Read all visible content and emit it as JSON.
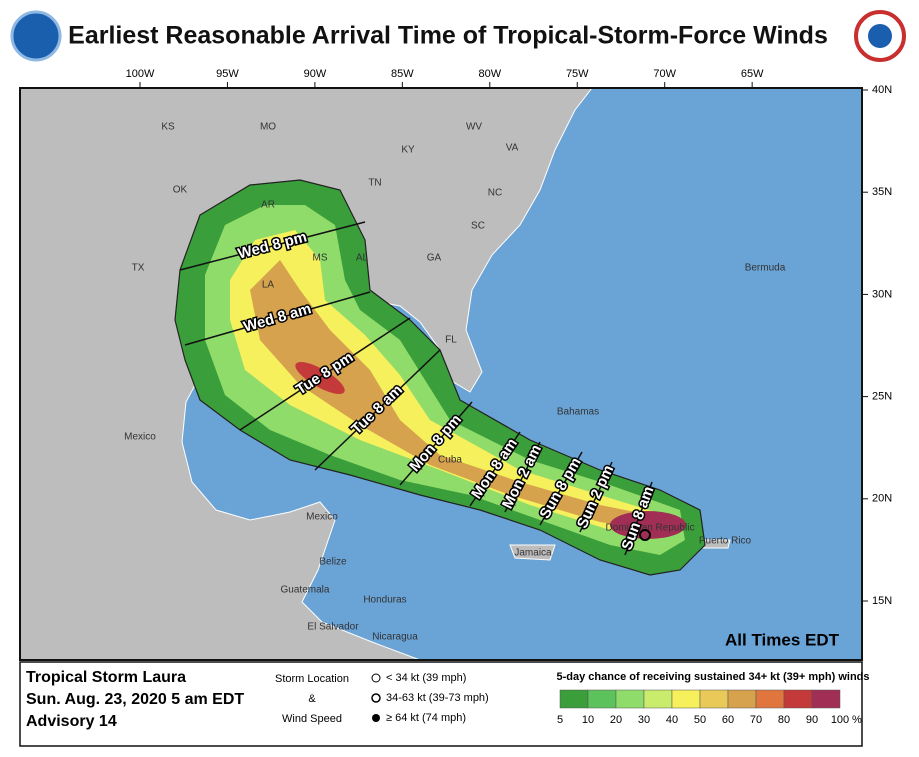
{
  "header": {
    "title": "Earliest Reasonable Arrival Time of Tropical-Storm-Force Winds"
  },
  "map": {
    "lon_ticks": [
      {
        "value": -100,
        "label": "100W"
      },
      {
        "value": -95,
        "label": "95W"
      },
      {
        "value": -90,
        "label": "90W"
      },
      {
        "value": -85,
        "label": "85W"
      },
      {
        "value": -80,
        "label": "80W"
      },
      {
        "value": -75,
        "label": "75W"
      },
      {
        "value": -70,
        "label": "70W"
      },
      {
        "value": -65,
        "label": "65W"
      }
    ],
    "lat_ticks": [
      {
        "value": 40,
        "label": "40N"
      },
      {
        "value": 35,
        "label": "35N"
      },
      {
        "value": 30,
        "label": "30N"
      },
      {
        "value": 25,
        "label": "25N"
      },
      {
        "value": 20,
        "label": "20N"
      },
      {
        "value": 15,
        "label": "15N"
      }
    ],
    "place_labels": [
      "KS",
      "MO",
      "WV",
      "VA",
      "KY",
      "OK",
      "AR",
      "TN",
      "NC",
      "SC",
      "TX",
      "MS",
      "AL",
      "GA",
      "LA",
      "FL",
      "Bermuda",
      "Mexico",
      "Bahamas",
      "Cuba",
      "Jamaica",
      "Dominican Republic",
      "Puerto Rico",
      "Mexico",
      "Belize",
      "Guatemala",
      "Honduras",
      "El Salvador",
      "Nicaragua"
    ],
    "time_labels": [
      "Wed 8 pm",
      "Wed 8 am",
      "Tue 8 pm",
      "Tue 8 am",
      "Mon 8 pm",
      "Mon 8 am",
      "Mon 2 am",
      "Sun 8 pm",
      "Sun 2 pm",
      "Sun 8 am"
    ],
    "note": "All Times EDT"
  },
  "footer": {
    "storm": "Tropical Storm Laura",
    "date": "Sun. Aug. 23, 2020  5 am EDT",
    "advisory": "Advisory 14",
    "legend": {
      "title_top": "Storm Location",
      "amp": "&",
      "title_bottom": "Wind Speed",
      "items": [
        "< 34 kt (39 mph)",
        "34-63 kt (39-73 mph)",
        "≥ 64 kt (74 mph)"
      ]
    },
    "scale": {
      "title": "5-day chance of receiving sustained 34+ kt (39+ mph) winds",
      "ticks": [
        5,
        10,
        20,
        30,
        40,
        50,
        60,
        70,
        80,
        90,
        100
      ],
      "unit": "%",
      "colors": [
        "#3a9e3a",
        "#5cc35c",
        "#8fdc6a",
        "#c9ec6c",
        "#f5f05c",
        "#e9c958",
        "#d6a24e",
        "#e0763e",
        "#c43a3a",
        "#a12f55"
      ]
    }
  }
}
